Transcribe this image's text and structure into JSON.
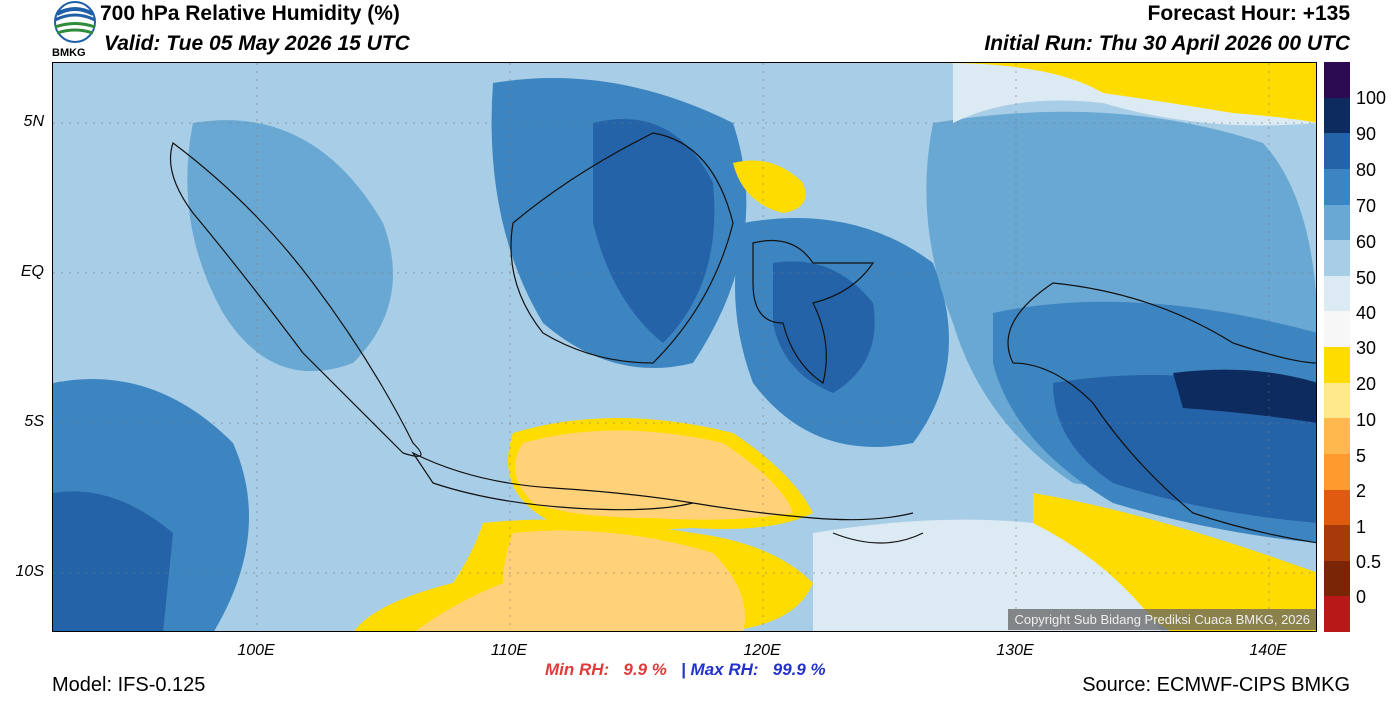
{
  "header": {
    "title": "700 hPa Relative Humidity (%)",
    "valid": "Valid: Tue 05 May 2026 15 UTC",
    "forecast_hour": "Forecast Hour: +135",
    "initial_run": "Initial Run: Thu 30 April 2026 00 UTC",
    "logo_text": "BMKG"
  },
  "axes": {
    "lat_labels": [
      "5N",
      "EQ",
      "5S",
      "10S"
    ],
    "lon_labels": [
      "100E",
      "110E",
      "120E",
      "130E",
      "140E"
    ]
  },
  "colorbar": {
    "labels": [
      "100",
      "90",
      "80",
      "70",
      "60",
      "50",
      "40",
      "30",
      "20",
      "10",
      "5",
      "2",
      "1",
      "0.5",
      "0"
    ],
    "colors": [
      "#2c0b52",
      "#0d2b5e",
      "#2563a8",
      "#3d85c0",
      "#6aa8d4",
      "#a8cde6",
      "#dceaf4",
      "#f7f7f7",
      "#ffdc00",
      "#ffe98c",
      "#ffd27a",
      "#ffb84d",
      "#ff9b2e",
      "#e05a10",
      "#a83a0a",
      "#7a2606",
      "#5c1a04",
      "#b81818",
      "#e23a2a"
    ]
  },
  "stats": {
    "min_label": "Min RH:",
    "min_value": "9.9 %",
    "separator": "|",
    "max_label": "Max RH:",
    "max_value": "99.9 %"
  },
  "footer": {
    "model": "Model: IFS-0.125",
    "source": "Source: ECMWF-CIPS BMKG",
    "copyright": "Copyright Sub Bidang Prediksi Cuaca BMKG, 2026"
  }
}
